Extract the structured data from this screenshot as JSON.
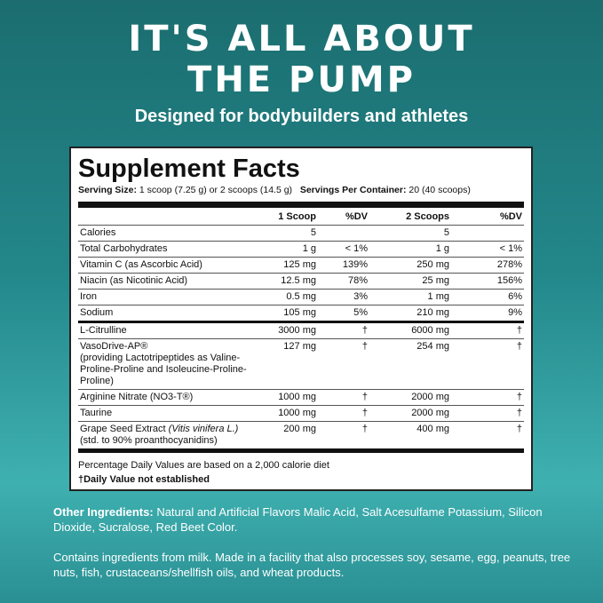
{
  "header": {
    "title_lines": [
      "IT'S ALL ABOUT",
      "THE PUMP"
    ],
    "subtitle": "Designed for bodybuilders and athletes"
  },
  "facts": {
    "title": "Supplement Facts",
    "serving_size_label": "Serving Size:",
    "serving_size": "1 scoop (7.25 g) or 2 scoops (14.5 g)",
    "servings_label": "Servings Per Container:",
    "servings": "20 (40 scoops)",
    "columns": [
      "1 Scoop",
      "%DV",
      "2 Scoops",
      "%DV"
    ],
    "groups": [
      [
        {
          "name": "Calories",
          "cells": [
            "5",
            null,
            "5",
            null
          ]
        },
        {
          "name": "Total Carbohydrates",
          "cells": [
            "1 g",
            "< 1%",
            "1 g",
            "< 1%"
          ]
        },
        {
          "name": "Vitamin C (as Ascorbic Acid)",
          "cells": [
            "125 mg",
            "139%",
            "250 mg",
            "278%"
          ]
        },
        {
          "name": "Niacin (as Nicotinic Acid)",
          "cells": [
            "12.5 mg",
            "78%",
            "25 mg",
            "156%"
          ]
        },
        {
          "name": "Iron",
          "cells": [
            "0.5 mg",
            "3%",
            "1 mg",
            "6%"
          ]
        },
        {
          "name": "Sodium",
          "cells": [
            "105 mg",
            "5%",
            "210 mg",
            "9%"
          ]
        }
      ],
      [
        {
          "name": "L-Citrulline",
          "cells": [
            "3000 mg",
            "†",
            "6000 mg",
            "†"
          ]
        },
        {
          "name": "VasoDrive-AP®",
          "note": "(providing Lactotripeptides as Valine-Proline-Proline and Isoleucine-Proline-Proline)",
          "cells": [
            "127 mg",
            "†",
            "254 mg",
            "†"
          ]
        },
        {
          "name": "Arginine Nitrate (NO3-T®)",
          "cells": [
            "1000 mg",
            "†",
            "2000 mg",
            "†"
          ]
        },
        {
          "name": "Taurine",
          "cells": [
            "1000 mg",
            "†",
            "2000 mg",
            "†"
          ]
        },
        {
          "name": "Grape Seed Extract",
          "italic": "(Vitis vinifera L.)",
          "note": "(std. to 90% proanthocyanidins)",
          "cells": [
            "200 mg",
            "†",
            "400 mg",
            "†"
          ]
        }
      ]
    ],
    "footnotes": [
      "Percentage Daily Values are based on a 2,000 calorie diet",
      "†Daily Value not established"
    ]
  },
  "other_ingredients": {
    "label": "Other Ingredients:",
    "text": "Natural and Artificial Flavors Malic Acid, Salt Acesulfame Potassium, Silicon Dioxide, Sucralose, Red Beet Color."
  },
  "allergens": "Contains ingredients from milk. Made in a facility that also processes soy, sesame, egg, peanuts, tree nuts, fish, crustaceans/shellfish oils, and wheat products."
}
